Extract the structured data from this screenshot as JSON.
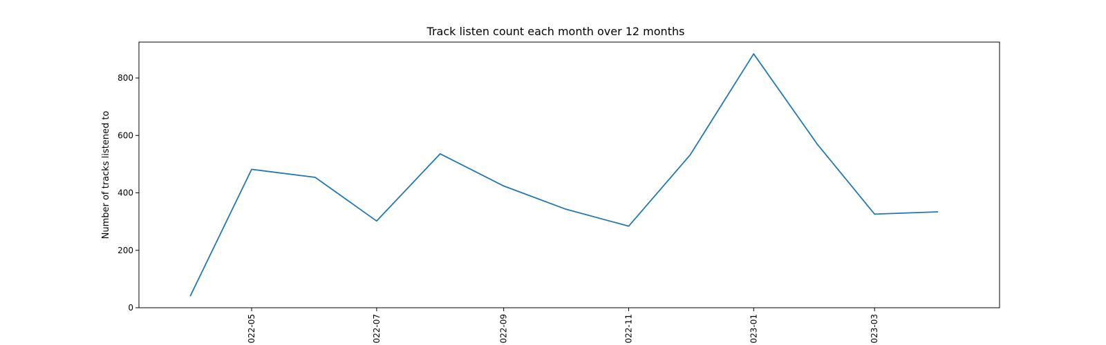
{
  "chart_data": {
    "type": "line",
    "title": "Track listen count each month over 12 months",
    "xlabel": "",
    "ylabel": "Number of tracks listened to",
    "x": [
      "2022-04",
      "2022-05",
      "2022-06",
      "2022-07",
      "2022-08",
      "2022-09",
      "2022-10",
      "2022-11",
      "2022-12",
      "2023-01",
      "2023-02",
      "2023-03",
      "2023-04"
    ],
    "series": [
      {
        "values": [
          40,
          482,
          454,
          302,
          536,
          424,
          344,
          284,
          532,
          884,
          570,
          326,
          334
        ],
        "color": "#1f77b4"
      }
    ],
    "x_ticks": [
      {
        "value": "2022-05",
        "label": "022-05"
      },
      {
        "value": "2022-07",
        "label": "022-07"
      },
      {
        "value": "2022-09",
        "label": "022-09"
      },
      {
        "value": "2022-11",
        "label": "022-11"
      },
      {
        "value": "2023-01",
        "label": "023-01"
      },
      {
        "value": "2023-03",
        "label": "023-03"
      }
    ],
    "y_ticks": [
      0,
      200,
      400,
      600,
      800
    ],
    "ylim": [
      0,
      925
    ],
    "xlim": [
      "2022-03-07",
      "2023-05-01"
    ],
    "grid": false,
    "legend": "none"
  }
}
